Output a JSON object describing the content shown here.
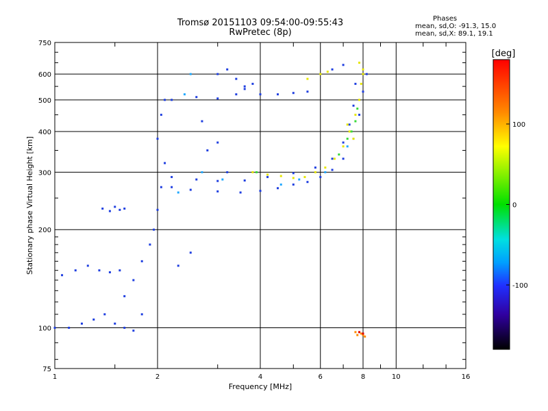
{
  "header": {
    "title": "Tromsø 20151103 09:54:00-09:55:43",
    "subtitle": "RwPretec (8p)",
    "phases_label": "Phases",
    "mean_o": "mean, sd,O: -91.3, 15.0",
    "mean_x": "mean, sd,X:  89.1, 19.1"
  },
  "chart_data": {
    "type": "scatter",
    "title": "Tromsø 20151103 09:54:00-09:55:43",
    "subtitle": "RwPretec (8p)",
    "xlabel": "Frequency [MHz]",
    "ylabel": "Stationary phase Virtual Height [km]",
    "x_scale": "log",
    "y_scale": "log",
    "xlim": [
      1,
      16
    ],
    "ylim": [
      75,
      750
    ],
    "x_ticks": [
      1,
      2,
      4,
      6,
      8,
      10,
      16
    ],
    "x_tick_labels": [
      "1",
      "2",
      "4",
      "6",
      "8",
      "10",
      "16"
    ],
    "x_minor_ticks": [
      1.5,
      3,
      5,
      7,
      9,
      12,
      14
    ],
    "y_ticks": [
      75,
      100,
      200,
      300,
      400,
      500,
      600,
      750
    ],
    "y_tick_labels": [
      "75",
      "100",
      "200",
      "300",
      "400",
      "500",
      "600",
      "750"
    ],
    "grid": true,
    "colorbar": {
      "label": "[deg]",
      "range": [
        -180,
        180
      ],
      "ticks": [
        100,
        0,
        -100
      ],
      "tick_labels": [
        "100",
        "0",
        "-100"
      ]
    },
    "series": [
      {
        "color": "#1f3fe0",
        "points": [
          [
            1.0,
            100
          ],
          [
            1.1,
            100
          ],
          [
            1.2,
            103
          ],
          [
            1.3,
            106
          ],
          [
            1.4,
            110
          ],
          [
            1.5,
            103
          ],
          [
            1.6,
            100
          ],
          [
            1.05,
            145
          ],
          [
            1.15,
            150
          ],
          [
            1.25,
            155
          ],
          [
            1.35,
            150
          ],
          [
            1.45,
            148
          ],
          [
            1.55,
            150
          ],
          [
            1.38,
            232
          ],
          [
            1.45,
            228
          ],
          [
            1.5,
            235
          ],
          [
            1.55,
            230
          ],
          [
            1.6,
            232
          ],
          [
            1.6,
            125
          ],
          [
            1.7,
            140
          ],
          [
            1.8,
            160
          ],
          [
            1.9,
            180
          ],
          [
            1.95,
            200
          ],
          [
            2.0,
            230
          ],
          [
            2.05,
            270
          ],
          [
            2.1,
            320
          ],
          [
            2.0,
            380
          ],
          [
            2.05,
            450
          ],
          [
            2.1,
            500
          ],
          [
            2.2,
            270
          ],
          [
            2.5,
            265
          ],
          [
            3.0,
            262
          ],
          [
            3.5,
            260
          ],
          [
            4.0,
            263
          ],
          [
            4.5,
            268
          ],
          [
            5.0,
            275
          ],
          [
            5.5,
            280
          ],
          [
            6.0,
            290
          ],
          [
            6.5,
            305
          ],
          [
            7.0,
            330
          ],
          [
            7.5,
            380
          ],
          [
            7.8,
            450
          ],
          [
            8.0,
            530
          ],
          [
            8.2,
            600
          ],
          [
            2.2,
            290
          ],
          [
            2.6,
            285
          ],
          [
            3.0,
            282
          ],
          [
            3.6,
            283
          ],
          [
            4.2,
            290
          ],
          [
            5.0,
            298
          ],
          [
            5.8,
            310
          ],
          [
            6.5,
            330
          ],
          [
            7.0,
            370
          ],
          [
            7.3,
            420
          ],
          [
            7.5,
            480
          ],
          [
            7.6,
            560
          ],
          [
            2.2,
            500
          ],
          [
            2.6,
            510
          ],
          [
            3.0,
            505
          ],
          [
            3.4,
            520
          ],
          [
            3.6,
            540
          ],
          [
            3.8,
            560
          ],
          [
            4.0,
            520
          ],
          [
            4.5,
            520
          ],
          [
            5.0,
            525
          ],
          [
            5.5,
            530
          ],
          [
            3.0,
            600
          ],
          [
            3.2,
            620
          ],
          [
            3.4,
            580
          ],
          [
            3.6,
            550
          ],
          [
            6.5,
            620
          ],
          [
            7.0,
            640
          ],
          [
            2.8,
            350
          ],
          [
            3.0,
            370
          ],
          [
            2.7,
            430
          ],
          [
            3.2,
            300
          ],
          [
            1.8,
            110
          ],
          [
            1.7,
            98
          ],
          [
            2.3,
            155
          ],
          [
            2.5,
            170
          ]
        ]
      },
      {
        "color": "#20a8ff",
        "points": [
          [
            2.4,
            520
          ],
          [
            2.7,
            300
          ],
          [
            3.1,
            285
          ],
          [
            4.6,
            275
          ],
          [
            5.2,
            285
          ],
          [
            6.2,
            300
          ],
          [
            7.2,
            360
          ],
          [
            2.3,
            260
          ],
          [
            2.5,
            600
          ]
        ]
      },
      {
        "color": "#e6e600",
        "points": [
          [
            3.8,
            300
          ],
          [
            4.2,
            295
          ],
          [
            4.6,
            292
          ],
          [
            5.0,
            288
          ],
          [
            5.4,
            290
          ],
          [
            5.8,
            300
          ],
          [
            6.2,
            310
          ],
          [
            6.6,
            330
          ],
          [
            7.0,
            360
          ],
          [
            7.3,
            400
          ],
          [
            7.6,
            450
          ],
          [
            7.8,
            500
          ],
          [
            7.9,
            560
          ],
          [
            8.0,
            620
          ],
          [
            5.5,
            580
          ],
          [
            6.0,
            600
          ],
          [
            6.3,
            610
          ],
          [
            7.8,
            650
          ],
          [
            8.0,
            600
          ],
          [
            7.2,
            420
          ],
          [
            7.5,
            380
          ]
        ]
      },
      {
        "color": "#39d93a",
        "points": [
          [
            7.4,
            400
          ],
          [
            7.6,
            430
          ],
          [
            7.2,
            380
          ],
          [
            6.8,
            340
          ],
          [
            7.7,
            470
          ],
          [
            3.9,
            300
          ]
        ]
      },
      {
        "color": "#ff8a00",
        "points": [
          [
            7.7,
            95
          ],
          [
            7.9,
            96
          ],
          [
            8.0,
            95
          ],
          [
            7.6,
            97
          ],
          [
            8.1,
            94
          ]
        ]
      },
      {
        "color": "#e00000",
        "points": [
          [
            7.8,
            97
          ],
          [
            8.0,
            96
          ]
        ]
      }
    ]
  }
}
